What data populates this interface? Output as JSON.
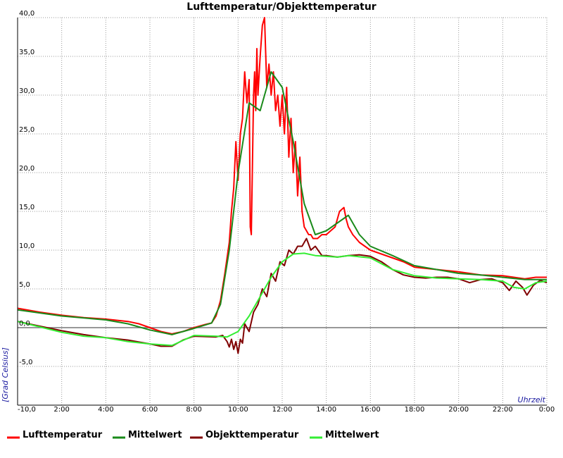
{
  "chart_data": {
    "type": "line",
    "title": "Lufttemperatur/Objekttemperatur",
    "xlabel": "Uhrzeit",
    "ylabel": "[Grad Celsius]",
    "x_ticks": [
      "-10,0",
      "2:00",
      "4:00",
      "6:00",
      "8:00",
      "10:00",
      "12:00",
      "14:00",
      "16:00",
      "18:00",
      "20:00",
      "22:00",
      "0:00"
    ],
    "y_ticks": [
      "-5,0",
      "0,0",
      "5,0",
      "10,0",
      "15,0",
      "20,0",
      "25,0",
      "30,0",
      "35,0",
      "40,0"
    ],
    "xlim": [
      0,
      24
    ],
    "ylim": [
      -10,
      40
    ],
    "grid": true,
    "legend_position": "bottom",
    "series": [
      {
        "name": "Lufttemperatur",
        "color": "#ff0000",
        "x": [
          0,
          1,
          2,
          3,
          4,
          5,
          5.5,
          6,
          6.5,
          7,
          7.5,
          8,
          8.5,
          8.8,
          9,
          9.2,
          9.4,
          9.6,
          9.7,
          9.8,
          9.9,
          10,
          10.1,
          10.2,
          10.3,
          10.4,
          10.5,
          10.55,
          10.6,
          10.7,
          10.75,
          10.8,
          10.85,
          10.9,
          11,
          11.1,
          11.2,
          11.3,
          11.4,
          11.5,
          11.6,
          11.7,
          11.8,
          11.9,
          12,
          12.1,
          12.2,
          12.3,
          12.4,
          12.5,
          12.6,
          12.7,
          12.8,
          12.9,
          13,
          13.1,
          13.2,
          13.3,
          13.4,
          13.6,
          13.8,
          14,
          14.2,
          14.4,
          14.6,
          14.8,
          14.9,
          15,
          15.2,
          15.5,
          16,
          16.5,
          17,
          17.5,
          18,
          19,
          20,
          21,
          22,
          22.5,
          23,
          23.5,
          24
        ],
        "y": [
          2.5,
          2.0,
          1.6,
          1.3,
          1.1,
          0.8,
          0.5,
          0,
          -0.5,
          -0.8,
          -0.5,
          0,
          0.4,
          0.6,
          1.5,
          3.5,
          7,
          11,
          15,
          18,
          24,
          19,
          25,
          27,
          33,
          29,
          32,
          13,
          12,
          30,
          33,
          28,
          36,
          30,
          35,
          39,
          40,
          31,
          34,
          30,
          33,
          28,
          30,
          26,
          30,
          25,
          31,
          22,
          27,
          20,
          24,
          17,
          22,
          15,
          13,
          12.5,
          12,
          12,
          11.5,
          11.5,
          12,
          12,
          12.5,
          13,
          15,
          15.5,
          14,
          13,
          12,
          11,
          10,
          9.5,
          9,
          8.5,
          7.8,
          7.5,
          7.2,
          6.8,
          6.7,
          6.5,
          6.3,
          6.5,
          6.5
        ]
      },
      {
        "name": "Mittelwert",
        "color": "#1a8a1a",
        "x": [
          0,
          2,
          4,
          5,
          6,
          7,
          8,
          8.8,
          9.2,
          9.6,
          10,
          10.5,
          11,
          11.5,
          12,
          12.5,
          13,
          13.5,
          14,
          14.5,
          15,
          15.5,
          16,
          17,
          18,
          19,
          20,
          21,
          22,
          23,
          24
        ],
        "y": [
          2.3,
          1.5,
          1.0,
          0.5,
          -0.3,
          -0.9,
          -0.1,
          0.6,
          3,
          10,
          20,
          29,
          28,
          33,
          31,
          24,
          16,
          12,
          12.5,
          13.5,
          14.5,
          12,
          10.5,
          9.3,
          8,
          7.5,
          7,
          6.8,
          6.5,
          6.2,
          6.2
        ]
      },
      {
        "name": "Objekttemperatur",
        "color": "#800000",
        "x": [
          0,
          1,
          2,
          3,
          4,
          5,
          6,
          6.5,
          7,
          7.5,
          8,
          9,
          9.3,
          9.5,
          9.6,
          9.7,
          9.8,
          9.9,
          10,
          10.1,
          10.2,
          10.3,
          10.5,
          10.7,
          10.9,
          11.1,
          11.3,
          11.5,
          11.7,
          11.9,
          12.1,
          12.3,
          12.5,
          12.7,
          12.9,
          13.1,
          13.3,
          13.5,
          13.8,
          14,
          14.5,
          15,
          15.5,
          16,
          16.5,
          17,
          17.5,
          18,
          18.5,
          19,
          19.5,
          20,
          20.5,
          21,
          21.5,
          22,
          22.3,
          22.6,
          22.9,
          23.1,
          23.4,
          23.7,
          24
        ],
        "y": [
          0.8,
          0.2,
          -0.4,
          -0.9,
          -1.3,
          -1.6,
          -2.1,
          -2.4,
          -2.4,
          -1.6,
          -1.1,
          -1.2,
          -1.0,
          -1.8,
          -2.5,
          -1.5,
          -2.8,
          -1.8,
          -3.3,
          -1.5,
          -2,
          0.5,
          -0.5,
          2,
          3,
          5,
          4,
          7,
          6,
          8.5,
          8,
          10,
          9.5,
          10.5,
          10.5,
          11.5,
          10,
          10.5,
          9.3,
          9.3,
          9.1,
          9.3,
          9.4,
          9.2,
          8.5,
          7.5,
          6.8,
          6.5,
          6.4,
          6.5,
          6.5,
          6.3,
          5.8,
          6.2,
          6.3,
          5.8,
          4.8,
          6,
          5.2,
          4.2,
          5.5,
          6.1,
          5.8
        ]
      },
      {
        "name": "Mittelwert",
        "color": "#33ee33",
        "x": [
          0,
          1,
          2,
          3,
          4,
          5,
          6,
          7,
          8,
          9,
          9.5,
          10,
          10.5,
          11,
          11.5,
          12,
          12.5,
          13,
          13.5,
          14,
          14.5,
          15,
          16,
          17,
          18,
          19,
          20,
          21,
          22,
          22.5,
          23,
          23.5,
          24
        ],
        "y": [
          0.8,
          0.1,
          -0.6,
          -1.1,
          -1.3,
          -1.8,
          -2.1,
          -2.3,
          -1.0,
          -1.1,
          -1.2,
          -0.5,
          1.5,
          4,
          6.5,
          8.5,
          9.5,
          9.6,
          9.3,
          9.2,
          9.1,
          9.3,
          9.0,
          7.5,
          6.7,
          6.4,
          6.3,
          6.2,
          6.0,
          5.2,
          5.0,
          5.8,
          6.0
        ]
      }
    ]
  }
}
